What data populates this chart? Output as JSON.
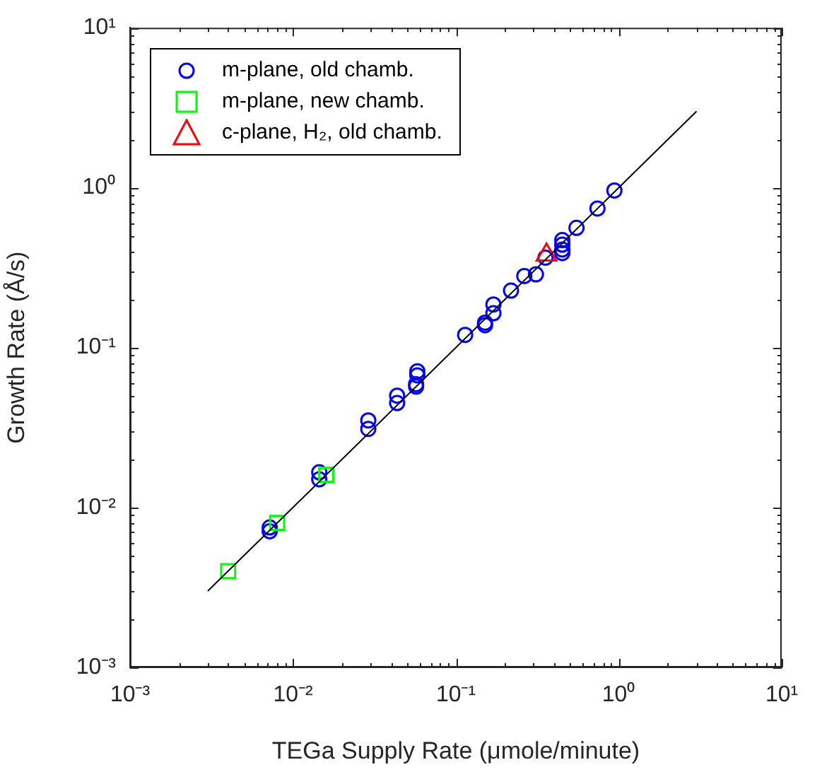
{
  "chart_data": {
    "type": "scatter",
    "xlabel": "TEGa Supply Rate (μmole/minute)",
    "ylabel": "Growth Rate (Å/s)",
    "log": "xy",
    "xlim": [
      0.001,
      10
    ],
    "ylim": [
      0.001,
      10
    ],
    "xticks": [
      {
        "value": 0.001,
        "label": "10⁻³"
      },
      {
        "value": 0.002,
        "label": null
      },
      {
        "value": 0.003,
        "label": null
      },
      {
        "value": 0.004,
        "label": null
      },
      {
        "value": 0.005,
        "label": null
      },
      {
        "value": 0.006,
        "label": null
      },
      {
        "value": 0.007,
        "label": null
      },
      {
        "value": 0.008,
        "label": null
      },
      {
        "value": 0.009,
        "label": null
      },
      {
        "value": 0.01,
        "label": "10⁻²"
      },
      {
        "value": 0.02,
        "label": null
      },
      {
        "value": 0.03,
        "label": null
      },
      {
        "value": 0.04,
        "label": null
      },
      {
        "value": 0.05,
        "label": null
      },
      {
        "value": 0.06,
        "label": null
      },
      {
        "value": 0.07,
        "label": null
      },
      {
        "value": 0.08,
        "label": null
      },
      {
        "value": 0.09,
        "label": null
      },
      {
        "value": 0.1,
        "label": "10⁻¹"
      },
      {
        "value": 0.2,
        "label": null
      },
      {
        "value": 0.3,
        "label": null
      },
      {
        "value": 0.4,
        "label": null
      },
      {
        "value": 0.5,
        "label": null
      },
      {
        "value": 0.6,
        "label": null
      },
      {
        "value": 0.7,
        "label": null
      },
      {
        "value": 0.8,
        "label": null
      },
      {
        "value": 0.9,
        "label": null
      },
      {
        "value": 1,
        "label": "10⁰"
      },
      {
        "value": 2,
        "label": null
      },
      {
        "value": 3,
        "label": null
      },
      {
        "value": 4,
        "label": null
      },
      {
        "value": 5,
        "label": null
      },
      {
        "value": 6,
        "label": null
      },
      {
        "value": 7,
        "label": null
      },
      {
        "value": 8,
        "label": null
      },
      {
        "value": 9,
        "label": null
      },
      {
        "value": 10,
        "label": "10¹"
      }
    ],
    "yticks": [
      {
        "value": 0.001,
        "label": "10⁻³"
      },
      {
        "value": 0.002,
        "label": null
      },
      {
        "value": 0.003,
        "label": null
      },
      {
        "value": 0.004,
        "label": null
      },
      {
        "value": 0.005,
        "label": null
      },
      {
        "value": 0.006,
        "label": null
      },
      {
        "value": 0.007,
        "label": null
      },
      {
        "value": 0.008,
        "label": null
      },
      {
        "value": 0.009,
        "label": null
      },
      {
        "value": 0.01,
        "label": "10⁻²"
      },
      {
        "value": 0.02,
        "label": null
      },
      {
        "value": 0.03,
        "label": null
      },
      {
        "value": 0.04,
        "label": null
      },
      {
        "value": 0.05,
        "label": null
      },
      {
        "value": 0.06,
        "label": null
      },
      {
        "value": 0.07,
        "label": null
      },
      {
        "value": 0.08,
        "label": null
      },
      {
        "value": 0.09,
        "label": null
      },
      {
        "value": 0.1,
        "label": "10⁻¹"
      },
      {
        "value": 0.2,
        "label": null
      },
      {
        "value": 0.3,
        "label": null
      },
      {
        "value": 0.4,
        "label": null
      },
      {
        "value": 0.5,
        "label": null
      },
      {
        "value": 0.6,
        "label": null
      },
      {
        "value": 0.7,
        "label": null
      },
      {
        "value": 0.8,
        "label": null
      },
      {
        "value": 0.9,
        "label": null
      },
      {
        "value": 1,
        "label": "10⁰"
      },
      {
        "value": 2,
        "label": null
      },
      {
        "value": 3,
        "label": null
      },
      {
        "value": 4,
        "label": null
      },
      {
        "value": 5,
        "label": null
      },
      {
        "value": 6,
        "label": null
      },
      {
        "value": 7,
        "label": null
      },
      {
        "value": 8,
        "label": null
      },
      {
        "value": 9,
        "label": null
      },
      {
        "value": 10,
        "label": "10¹"
      }
    ],
    "grid": false,
    "legend": "top left",
    "series": [
      {
        "name": "m-plane, old chamb.",
        "color": "#0000ff",
        "marker": "circle",
        "x": [
          0.94,
          0.74,
          0.55,
          0.45,
          0.45,
          0.45,
          0.45,
          0.355,
          0.31,
          0.263,
          0.218,
          0.17,
          0.17,
          0.151,
          0.151,
          0.114,
          0.058,
          0.058,
          0.057,
          0.057,
          0.0436,
          0.0436,
          0.029,
          0.029,
          0.0145,
          0.0145,
          0.0072,
          0.0072
        ],
        "values": [
          0.96,
          0.74,
          0.56,
          0.47,
          0.44,
          0.41,
          0.39,
          0.365,
          0.287,
          0.28,
          0.227,
          0.186,
          0.164,
          0.143,
          0.138,
          0.12,
          0.071,
          0.067,
          0.059,
          0.057,
          0.05,
          0.045,
          0.035,
          0.031,
          0.0166,
          0.015,
          0.0075,
          0.0071
        ]
      },
      {
        "name": "m-plane, new chamb.",
        "color": "#00ff00",
        "marker": "square",
        "x": [
          0.004,
          0.008,
          0.016
        ],
        "values": [
          0.004,
          0.008,
          0.016
        ]
      },
      {
        "name": "c-plane, H₂, old chamb.",
        "color": "#ff0000",
        "marker": "triangle",
        "x": [
          0.36
        ],
        "values": [
          0.38
        ]
      },
      {
        "type": "line",
        "color": "#000000",
        "marker": "none",
        "line_style": "solid",
        "x": [
          0.003,
          3
        ],
        "values": [
          0.003,
          3
        ]
      }
    ]
  }
}
